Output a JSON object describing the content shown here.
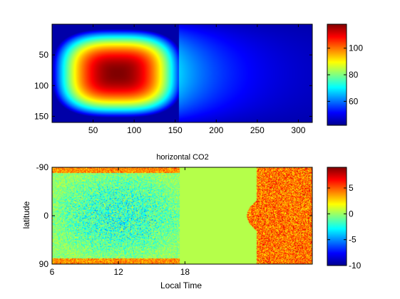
{
  "chart_data": [
    {
      "type": "heatmap",
      "title": "",
      "xlabel": "",
      "ylabel": "",
      "xticks": [
        "50",
        "100",
        "150",
        "200",
        "250",
        "300"
      ],
      "xtick_values": [
        50,
        100,
        150,
        200,
        250,
        300
      ],
      "xlim": [
        0,
        317
      ],
      "yticks": [
        "50",
        "100",
        "150"
      ],
      "ytick_values": [
        50,
        100,
        150
      ],
      "ylim": [
        0,
        160
      ],
      "y_reversed": true,
      "field": {
        "description_values": "smooth hot blob over columns 0-155, centered near x=80, y=80; decaying cool field beyond x=155",
        "peak": 118,
        "peak_center": [
          80,
          80
        ],
        "blob_x_range": [
          0,
          155
        ],
        "background": 45
      },
      "colorbar": {
        "colormap": "jet",
        "range": [
          42,
          118
        ],
        "ticks": [
          "60",
          "80",
          "100"
        ],
        "tick_values": [
          60,
          80,
          100
        ]
      }
    },
    {
      "type": "heatmap",
      "title": "horizontal CO2",
      "xlabel": "Local Time",
      "ylabel": "latitude",
      "xticks": [
        "6",
        "12",
        "18"
      ],
      "xtick_values": [
        6,
        12,
        18
      ],
      "xlim": [
        6,
        29.5
      ],
      "yticks": [
        "-90",
        "0",
        "90"
      ],
      "ytick_values": [
        -90,
        0,
        90
      ],
      "ylim": [
        -90,
        90
      ],
      "field": {
        "noise_region_day": [
          6,
          17.5
        ],
        "day_mean": -1.2,
        "uniform_region": [
          17.5,
          24.5
        ],
        "uniform_value": 0.5,
        "night_noise_region": [
          24.5,
          29.5
        ],
        "night_mean": 4.5
      },
      "colorbar": {
        "colormap": "jet",
        "range": [
          -10,
          9
        ],
        "ticks": [
          "5",
          "0",
          "-5",
          "-10"
        ],
        "tick_values": [
          5,
          0,
          -5,
          -10
        ]
      }
    }
  ]
}
